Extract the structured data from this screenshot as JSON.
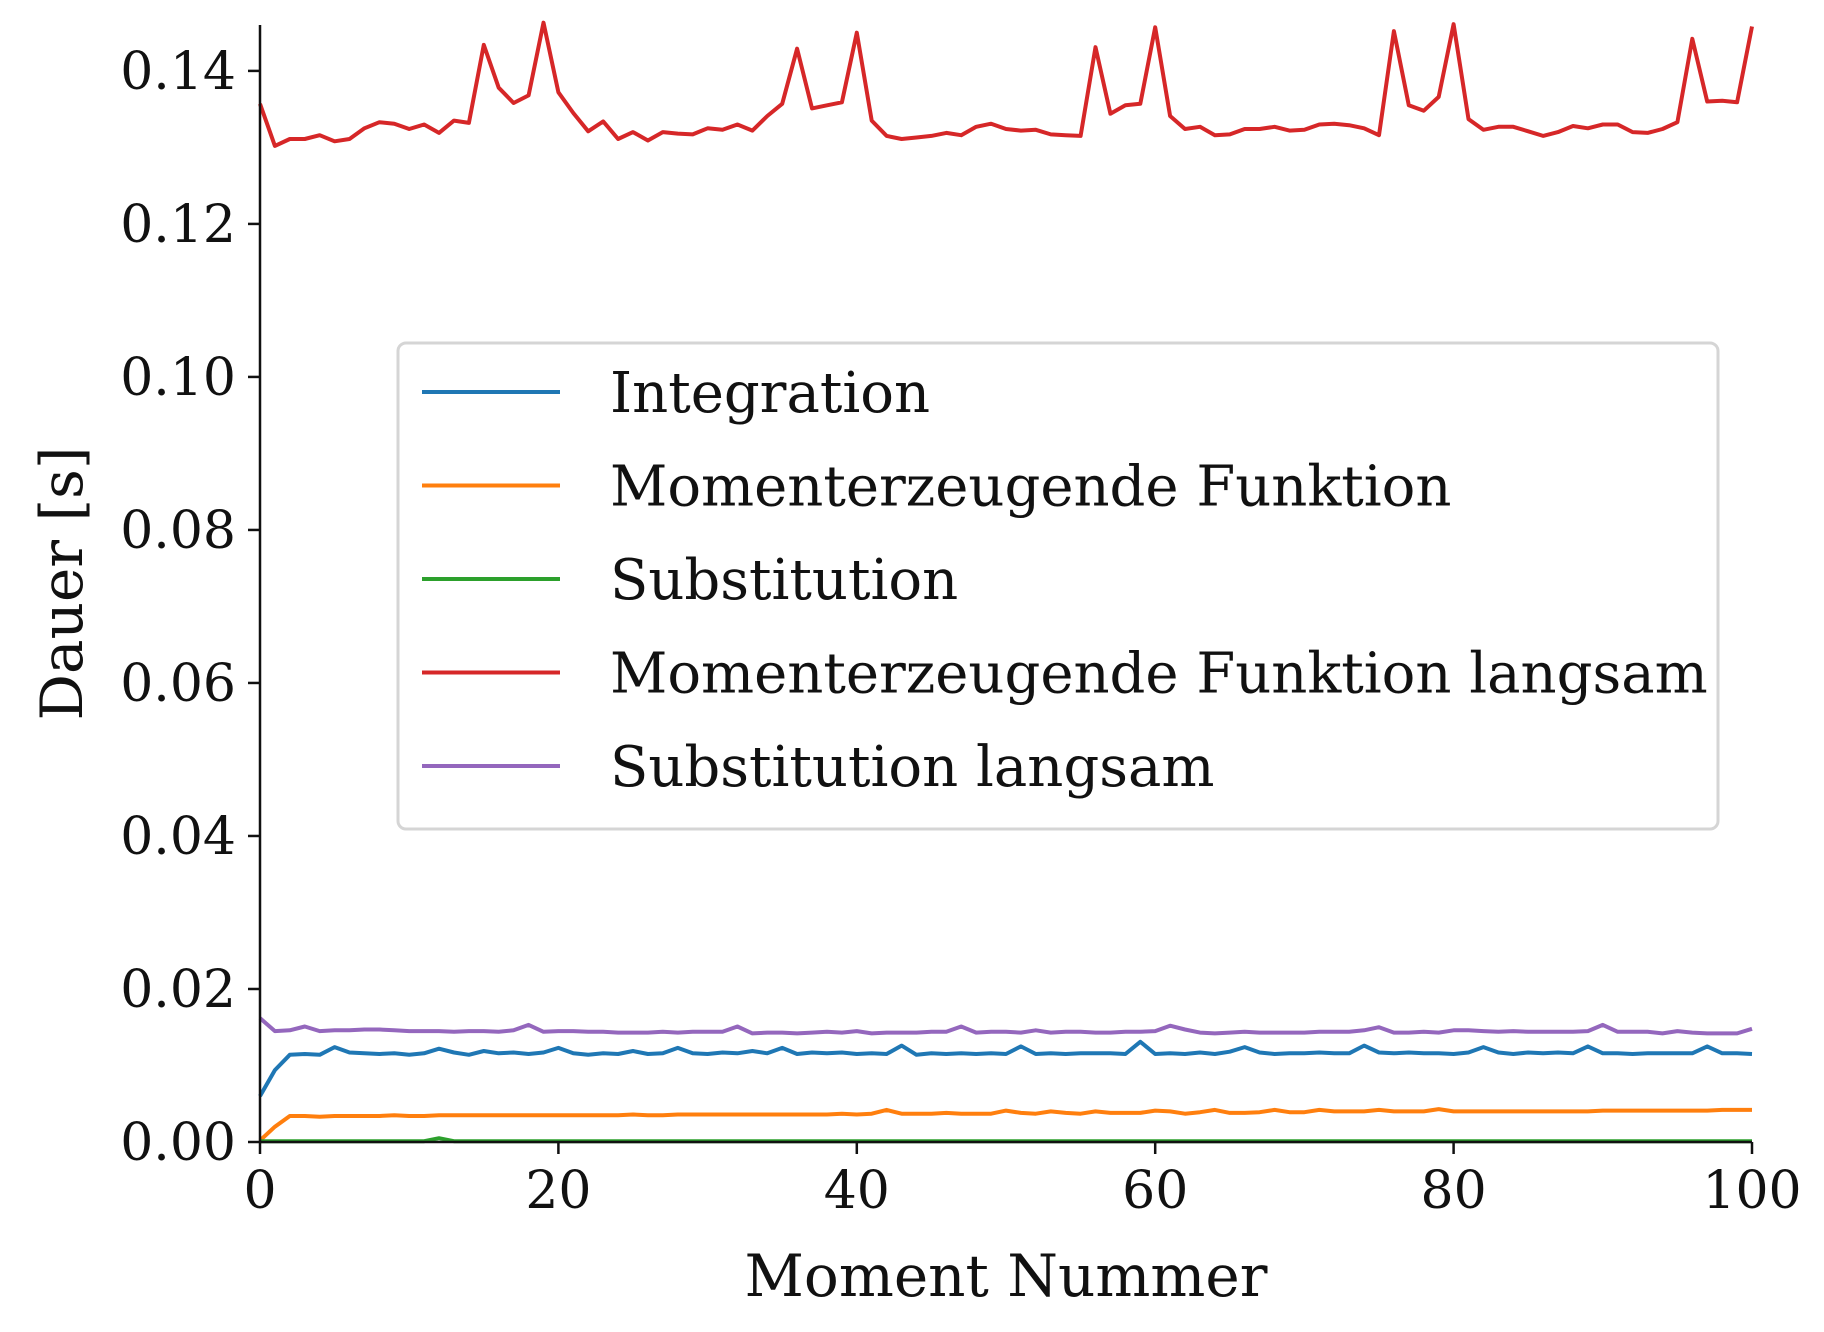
{
  "chart_data": {
    "type": "line",
    "xlabel": "Moment Nummer",
    "ylabel": "Dauer [s]",
    "xlim": [
      0,
      100
    ],
    "ylim": [
      0,
      0.146
    ],
    "xticks": [
      0,
      20,
      40,
      60,
      80,
      100
    ],
    "xtick_labels": [
      "0",
      "20",
      "40",
      "60",
      "80",
      "100"
    ],
    "yticks": [
      0,
      0.02,
      0.04,
      0.06,
      0.08,
      0.1,
      0.12,
      0.14
    ],
    "ytick_labels": [
      "0.00",
      "0.02",
      "0.04",
      "0.06",
      "0.08",
      "0.10",
      "0.12",
      "0.14"
    ],
    "grid": false,
    "legend_position": "center-right",
    "x": [
      0,
      1,
      2,
      3,
      4,
      5,
      6,
      7,
      8,
      9,
      10,
      11,
      12,
      13,
      14,
      15,
      16,
      17,
      18,
      19,
      20,
      21,
      22,
      23,
      24,
      25,
      26,
      27,
      28,
      29,
      30,
      31,
      32,
      33,
      34,
      35,
      36,
      37,
      38,
      39,
      40,
      41,
      42,
      43,
      44,
      45,
      46,
      47,
      48,
      49,
      50,
      51,
      52,
      53,
      54,
      55,
      56,
      57,
      58,
      59,
      60,
      61,
      62,
      63,
      64,
      65,
      66,
      67,
      68,
      69,
      70,
      71,
      72,
      73,
      74,
      75,
      76,
      77,
      78,
      79,
      80,
      81,
      82,
      83,
      84,
      85,
      86,
      87,
      88,
      89,
      90,
      91,
      92,
      93,
      94,
      95,
      96,
      97,
      98,
      99,
      100
    ],
    "series": [
      {
        "name": "Integration",
        "color": "#1f77b4",
        "values": [
          0.006,
          0.0094,
          0.0114,
          0.0115,
          0.0114,
          0.0124,
          0.0117,
          0.0116,
          0.0115,
          0.0116,
          0.0114,
          0.0116,
          0.0122,
          0.0117,
          0.0114,
          0.0119,
          0.0116,
          0.0117,
          0.0115,
          0.0117,
          0.0123,
          0.0116,
          0.0114,
          0.0116,
          0.0115,
          0.0119,
          0.0115,
          0.0116,
          0.0123,
          0.0116,
          0.0115,
          0.0117,
          0.0116,
          0.0119,
          0.0116,
          0.0123,
          0.0115,
          0.0117,
          0.0116,
          0.0117,
          0.0115,
          0.0116,
          0.0115,
          0.0126,
          0.0114,
          0.0116,
          0.0115,
          0.0116,
          0.0115,
          0.0116,
          0.0115,
          0.0125,
          0.0115,
          0.0116,
          0.0115,
          0.0116,
          0.0116,
          0.0116,
          0.0115,
          0.0131,
          0.0115,
          0.0116,
          0.0115,
          0.0117,
          0.0115,
          0.0118,
          0.0124,
          0.0117,
          0.0115,
          0.0116,
          0.0116,
          0.0117,
          0.0116,
          0.0116,
          0.0126,
          0.0117,
          0.0116,
          0.0117,
          0.0116,
          0.0116,
          0.0115,
          0.0117,
          0.0124,
          0.0117,
          0.0115,
          0.0117,
          0.0116,
          0.0117,
          0.0116,
          0.0125,
          0.0116,
          0.0116,
          0.0115,
          0.0116,
          0.0116,
          0.0116,
          0.0116,
          0.0125,
          0.0116,
          0.0116,
          0.0115
        ]
      },
      {
        "name": "Momenterzeugende Funktion",
        "color": "#ff7f0e",
        "values": [
          0.0002,
          0.002,
          0.0034,
          0.0034,
          0.0033,
          0.0034,
          0.0034,
          0.0034,
          0.0034,
          0.0035,
          0.0034,
          0.0034,
          0.0035,
          0.0035,
          0.0035,
          0.0035,
          0.0035,
          0.0035,
          0.0035,
          0.0035,
          0.0035,
          0.0035,
          0.0035,
          0.0035,
          0.0035,
          0.0036,
          0.0035,
          0.0035,
          0.0036,
          0.0036,
          0.0036,
          0.0036,
          0.0036,
          0.0036,
          0.0036,
          0.0036,
          0.0036,
          0.0036,
          0.0036,
          0.0037,
          0.0036,
          0.0037,
          0.0042,
          0.0037,
          0.0037,
          0.0037,
          0.0038,
          0.0037,
          0.0037,
          0.0037,
          0.0041,
          0.0038,
          0.0037,
          0.004,
          0.0038,
          0.0037,
          0.004,
          0.0038,
          0.0038,
          0.0038,
          0.0041,
          0.004,
          0.0037,
          0.0039,
          0.0042,
          0.0038,
          0.0038,
          0.0039,
          0.0042,
          0.0039,
          0.0039,
          0.0042,
          0.004,
          0.004,
          0.004,
          0.0042,
          0.004,
          0.004,
          0.004,
          0.0043,
          0.004,
          0.004,
          0.004,
          0.004,
          0.004,
          0.004,
          0.004,
          0.004,
          0.004,
          0.004,
          0.0041,
          0.0041,
          0.0041,
          0.0041,
          0.0041,
          0.0041,
          0.0041,
          0.0041,
          0.0042,
          0.0042,
          0.0042
        ]
      },
      {
        "name": "Substitution",
        "color": "#2ca02c",
        "values": [
          0.0001,
          0.0001,
          0.0001,
          0.0001,
          0.0001,
          0.0001,
          0.0001,
          0.0001,
          0.0001,
          0.0001,
          0.0001,
          0.0001,
          0.0005,
          0.0001,
          0.0001,
          0.0001,
          0.0001,
          0.0001,
          0.0001,
          0.0001,
          0.0001,
          0.0001,
          0.0001,
          0.0001,
          0.0001,
          0.0001,
          0.0001,
          0.0001,
          0.0001,
          0.0001,
          0.0001,
          0.0001,
          0.0001,
          0.0001,
          0.0001,
          0.0001,
          0.0001,
          0.0001,
          0.0001,
          0.0001,
          0.0001,
          0.0001,
          0.0001,
          0.0001,
          0.0001,
          0.0001,
          0.0001,
          0.0001,
          0.0001,
          0.0001,
          0.0001,
          0.0001,
          0.0001,
          0.0001,
          0.0001,
          0.0001,
          0.0001,
          0.0001,
          0.0001,
          0.0001,
          0.0001,
          0.0001,
          0.0001,
          0.0001,
          0.0001,
          0.0001,
          0.0001,
          0.0001,
          0.0001,
          0.0001,
          0.0001,
          0.0001,
          0.0001,
          0.0001,
          0.0001,
          0.0001,
          0.0001,
          0.0001,
          0.0001,
          0.0001,
          0.0001,
          0.0001,
          0.0001,
          0.0001,
          0.0001,
          0.0001,
          0.0001,
          0.0001,
          0.0001,
          0.0001,
          0.0001,
          0.0001,
          0.0001,
          0.0001,
          0.0001,
          0.0001,
          0.0001,
          0.0001,
          0.0001,
          0.0001,
          0.0001
        ]
      },
      {
        "name": "Momenterzeugende Funktion langsam",
        "color": "#d62728",
        "values": [
          0.1357,
          0.1302,
          0.1311,
          0.1311,
          0.1316,
          0.1308,
          0.1311,
          0.1325,
          0.1333,
          0.1331,
          0.1324,
          0.133,
          0.1319,
          0.1335,
          0.1332,
          0.1434,
          0.1378,
          0.1358,
          0.1368,
          0.1463,
          0.1372,
          0.1345,
          0.1321,
          0.1334,
          0.1311,
          0.132,
          0.1309,
          0.132,
          0.1318,
          0.1317,
          0.1325,
          0.1323,
          0.133,
          0.1322,
          0.1341,
          0.1357,
          0.1429,
          0.1351,
          0.1355,
          0.1359,
          0.145,
          0.1335,
          0.1315,
          0.1311,
          0.1313,
          0.1315,
          0.1319,
          0.1316,
          0.1327,
          0.1331,
          0.1324,
          0.1322,
          0.1323,
          0.1317,
          0.1316,
          0.1315,
          0.1431,
          0.1344,
          0.1355,
          0.1357,
          0.1457,
          0.1341,
          0.1324,
          0.1327,
          0.1316,
          0.1317,
          0.1324,
          0.1324,
          0.1327,
          0.1322,
          0.1323,
          0.133,
          0.1331,
          0.1329,
          0.1325,
          0.1316,
          0.1452,
          0.1355,
          0.1348,
          0.1366,
          0.1461,
          0.1337,
          0.1323,
          0.1327,
          0.1327,
          0.1321,
          0.1315,
          0.132,
          0.1328,
          0.1325,
          0.133,
          0.133,
          0.132,
          0.1319,
          0.1324,
          0.1333,
          0.1442,
          0.136,
          0.1361,
          0.1359,
          0.1458
        ]
      },
      {
        "name": "Substitution langsam",
        "color": "#9467bd",
        "values": [
          0.0162,
          0.0145,
          0.0146,
          0.0151,
          0.0145,
          0.0146,
          0.0146,
          0.0147,
          0.0147,
          0.0146,
          0.0145,
          0.0145,
          0.0145,
          0.0144,
          0.0145,
          0.0145,
          0.0144,
          0.0146,
          0.0153,
          0.0144,
          0.0145,
          0.0145,
          0.0144,
          0.0144,
          0.0143,
          0.0143,
          0.0143,
          0.0144,
          0.0143,
          0.0144,
          0.0144,
          0.0144,
          0.0151,
          0.0142,
          0.0143,
          0.0143,
          0.0142,
          0.0143,
          0.0144,
          0.0143,
          0.0145,
          0.0142,
          0.0143,
          0.0143,
          0.0143,
          0.0144,
          0.0144,
          0.0151,
          0.0143,
          0.0144,
          0.0144,
          0.0143,
          0.0146,
          0.0143,
          0.0144,
          0.0144,
          0.0143,
          0.0143,
          0.0144,
          0.0144,
          0.0145,
          0.0152,
          0.0147,
          0.0143,
          0.0142,
          0.0143,
          0.0144,
          0.0143,
          0.0143,
          0.0143,
          0.0143,
          0.0144,
          0.0144,
          0.0144,
          0.0146,
          0.015,
          0.0143,
          0.0143,
          0.0144,
          0.0143,
          0.0146,
          0.0146,
          0.0145,
          0.0144,
          0.0145,
          0.0144,
          0.0144,
          0.0144,
          0.0144,
          0.0145,
          0.0153,
          0.0144,
          0.0144,
          0.0144,
          0.0142,
          0.0145,
          0.0143,
          0.0142,
          0.0142,
          0.0142,
          0.0148
        ]
      }
    ]
  }
}
